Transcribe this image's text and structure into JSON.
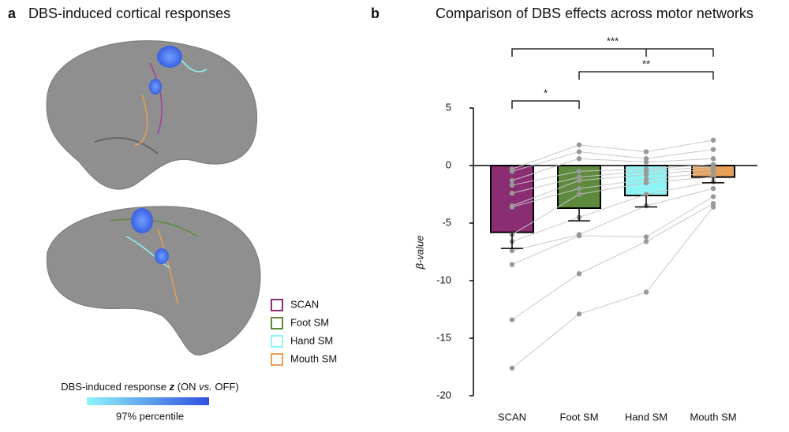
{
  "panel_a": {
    "letter": "a",
    "title": "DBS-induced cortical responses",
    "legend": [
      {
        "name": "SCAN",
        "color": "#8b2d73"
      },
      {
        "name": "Foot SM",
        "color": "#5d8a3d"
      },
      {
        "name": "Hand SM",
        "color": "#8ff4f4"
      },
      {
        "name": "Mouth SM",
        "color": "#e6a058"
      }
    ],
    "colorbar": {
      "label_parts": [
        "DBS-induced response ",
        "z",
        " (ON ",
        "vs.",
        " OFF)"
      ],
      "caption": "97% percentile",
      "colors": [
        "#8ff4fb",
        "#2f4fe0"
      ]
    }
  },
  "chart_data": {
    "type": "bar",
    "letter": "b",
    "title": "Comparison of DBS effects across motor networks",
    "categories": [
      "SCAN",
      "Foot SM",
      "Hand SM",
      "Mouth SM"
    ],
    "values": [
      -5.8,
      -3.7,
      -2.6,
      -1.0
    ],
    "errors": [
      1.4,
      1.1,
      1.0,
      0.5
    ],
    "colors": [
      "#8b2d73",
      "#5d8a3d",
      "#8ff4f4",
      "#e6a058"
    ],
    "subjects": [
      [
        -0.3,
        1.8,
        1.2,
        2.2
      ],
      [
        -0.5,
        1.2,
        0.6,
        1.4
      ],
      [
        -1.3,
        0.6,
        0.3,
        0.6
      ],
      [
        -1.7,
        -0.5,
        -0.3,
        0.1
      ],
      [
        -2.4,
        -1.0,
        -0.5,
        -0.1
      ],
      [
        -3.5,
        -1.3,
        -0.8,
        -0.3
      ],
      [
        -3.6,
        -2.0,
        -1.2,
        -0.6
      ],
      [
        -6.0,
        -2.5,
        -1.5,
        -1.0
      ],
      [
        -6.6,
        -4.5,
        -2.5,
        -1.4
      ],
      [
        -7.4,
        -6.0,
        -3.5,
        -2.0
      ],
      [
        -8.6,
        -6.1,
        -6.2,
        -2.7
      ],
      [
        -13.4,
        -9.4,
        -6.6,
        -3.3
      ],
      [
        -17.6,
        -12.9,
        -11.0,
        -3.6
      ]
    ],
    "ylabel": "β-value",
    "ylim": [
      -20,
      5
    ],
    "yticks": [
      -20,
      -15,
      -10,
      -5,
      0,
      5
    ],
    "significance": [
      {
        "from": 0,
        "to": 1,
        "label": "*"
      },
      {
        "from": 1,
        "to": 3,
        "label": "**"
      },
      {
        "from": 0,
        "to": 3,
        "label": "***"
      }
    ]
  }
}
